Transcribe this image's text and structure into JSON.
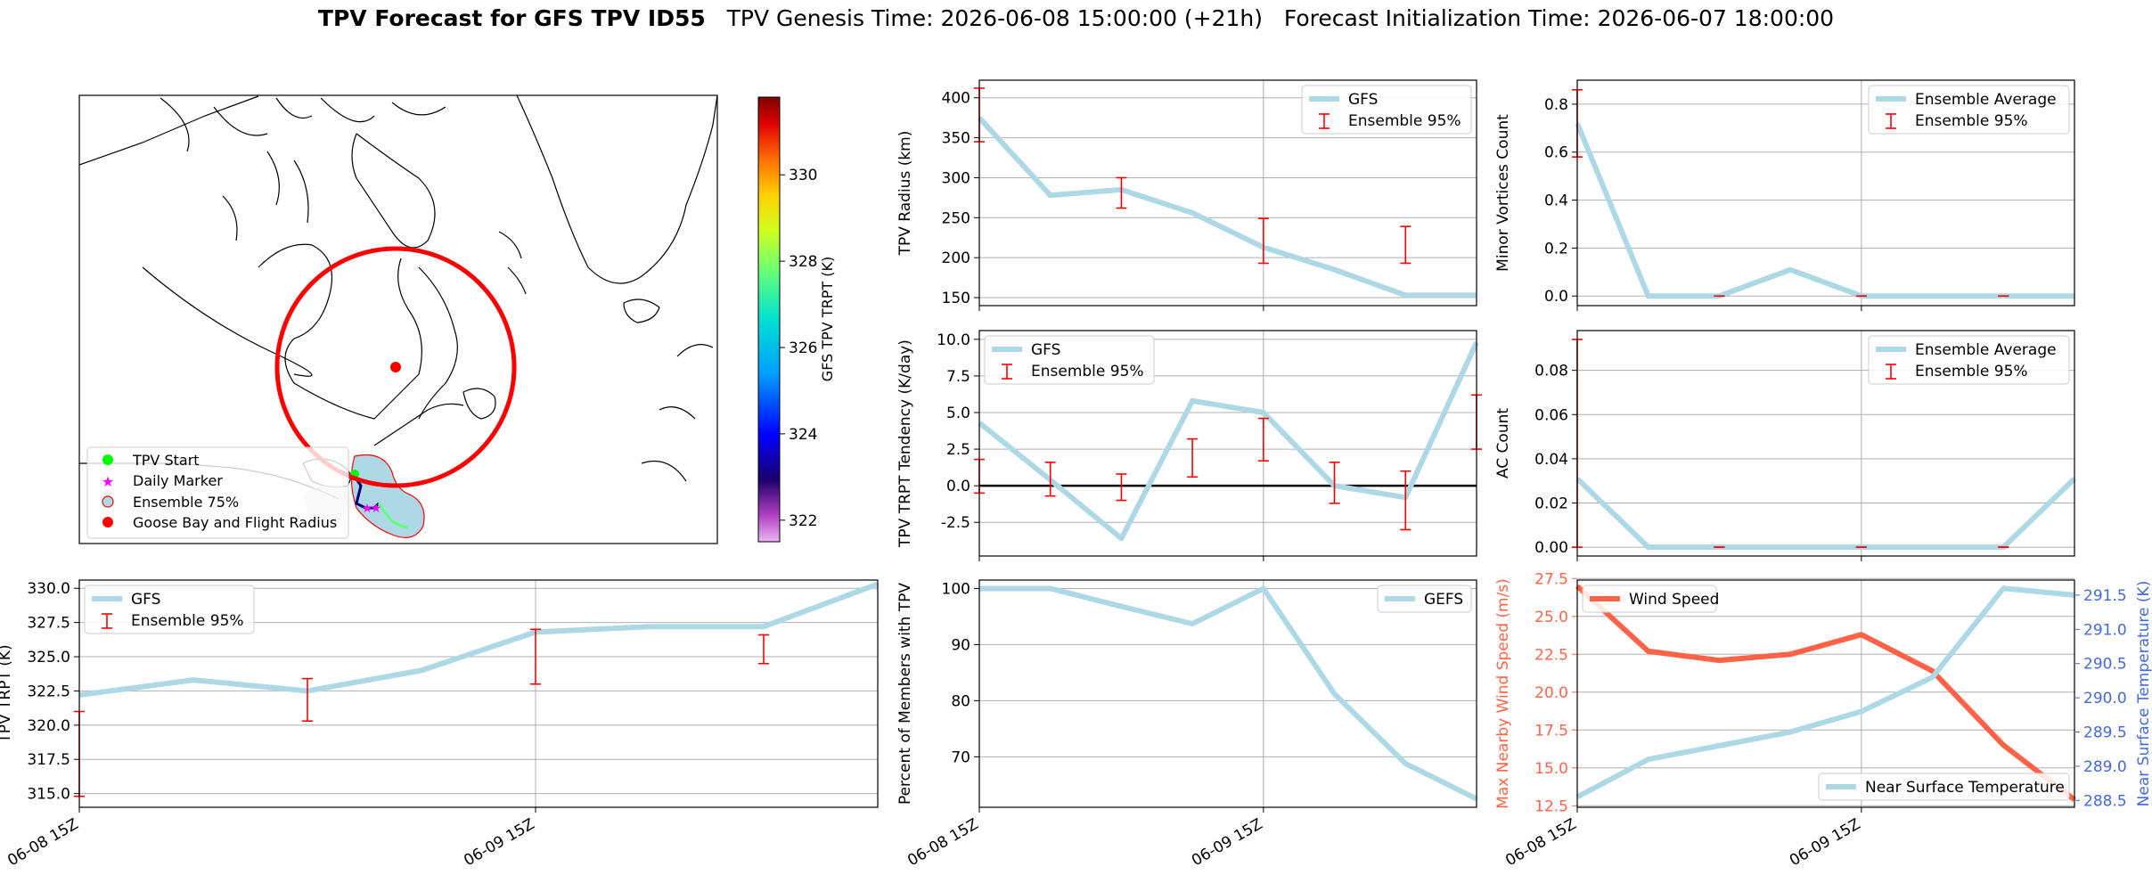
{
  "header": {
    "title_bold": "TPV Forecast for GFS TPV ID55",
    "genesis": "TPV Genesis Time: 2026-06-08 15:00:00 (+21h)",
    "init": "Forecast Initialization Time: 2026-06-07 18:00:00"
  },
  "colors": {
    "gfs_line": "#add8e6",
    "ensemble_error": "#ff0000",
    "wind_line": "#ff6347",
    "temp_axis": "#4169e1",
    "grid": "#b0b0b0"
  },
  "map": {
    "legend": [
      "TPV Start",
      "Daily Marker",
      "Ensemble 75%",
      "Goose Bay and Flight Radius"
    ],
    "colorbar": {
      "label": "GFS TPV TRPT (K)",
      "ticks": [
        322,
        324,
        326,
        328,
        330
      ],
      "range": [
        321.5,
        331.8
      ],
      "cmap": "jet-with-violet"
    }
  },
  "chart_data": [
    {
      "id": "radius",
      "type": "line",
      "x": [
        0,
        1,
        2,
        3,
        4,
        5,
        6,
        7
      ],
      "xticks": [],
      "xlim": [
        0,
        7
      ],
      "ylim": [
        140,
        422
      ],
      "yticks": [
        150,
        200,
        250,
        300,
        350,
        400
      ],
      "ylabel": "TPV Radius (km)",
      "series": [
        {
          "name": "GFS",
          "values": [
            375,
            278,
            285,
            256,
            213,
            185,
            153,
            153
          ]
        }
      ],
      "errorbars": {
        "name": "Ensemble 95%",
        "points": [
          [
            0,
            345,
            412
          ],
          [
            2,
            262,
            300
          ],
          [
            4,
            193,
            249
          ],
          [
            6,
            193,
            239
          ]
        ]
      },
      "legend": "upper right"
    },
    {
      "id": "minor",
      "type": "line",
      "x": [
        0,
        1,
        2,
        3,
        4,
        5,
        6,
        7
      ],
      "xticks": [],
      "xlim": [
        0,
        7
      ],
      "ylim": [
        -0.04,
        0.9
      ],
      "yticks": [
        0.0,
        0.2,
        0.4,
        0.6,
        0.8
      ],
      "ylabel": "Minor Vortices Count",
      "series": [
        {
          "name": "Ensemble Average",
          "values": [
            0.72,
            0,
            0,
            0.11,
            0,
            0,
            0,
            0
          ]
        }
      ],
      "errorbars": {
        "name": "Ensemble 95%",
        "points": [
          [
            0,
            0.58,
            0.86
          ],
          [
            2,
            0,
            0
          ],
          [
            4,
            0,
            0
          ],
          [
            6,
            0,
            0
          ]
        ]
      },
      "legend": "upper right"
    },
    {
      "id": "tendency",
      "type": "line",
      "x": [
        0,
        1,
        2,
        3,
        4,
        5,
        6,
        7
      ],
      "xticks": [],
      "xlim": [
        0,
        7
      ],
      "ylim": [
        -4.8,
        10.6
      ],
      "yticks": [
        -2.5,
        0.0,
        2.5,
        5.0,
        7.5,
        10.0
      ],
      "ylabel": "TPV TRPT Tendency (K/day)",
      "zero_line": true,
      "series": [
        {
          "name": "GFS",
          "values": [
            4.3,
            0.4,
            -3.6,
            5.8,
            5.0,
            0.0,
            -0.8,
            9.8
          ]
        }
      ],
      "errorbars": {
        "name": "Ensemble 95%",
        "points": [
          [
            0,
            -0.5,
            1.8
          ],
          [
            1,
            -0.7,
            1.6
          ],
          [
            2,
            -1.0,
            0.8
          ],
          [
            3,
            0.6,
            3.2
          ],
          [
            4,
            1.7,
            4.6
          ],
          [
            5,
            -1.2,
            1.6
          ],
          [
            6,
            -3.0,
            1.0
          ],
          [
            7,
            2.5,
            6.2
          ]
        ]
      },
      "legend": "upper left"
    },
    {
      "id": "ac",
      "type": "line",
      "x": [
        0,
        1,
        2,
        3,
        4,
        5,
        6,
        7
      ],
      "xticks": [],
      "xlim": [
        0,
        7
      ],
      "ylim": [
        -0.004,
        0.098
      ],
      "yticks": [
        0.0,
        0.02,
        0.04,
        0.06,
        0.08
      ],
      "ylabel": "AC Count",
      "series": [
        {
          "name": "Ensemble Average",
          "values": [
            0.031,
            0,
            0,
            0,
            0,
            0,
            0,
            0.031
          ]
        }
      ],
      "errorbars": {
        "name": "Ensemble 95%",
        "points": [
          [
            0,
            0,
            0.094
          ],
          [
            2,
            0,
            0
          ],
          [
            4,
            0,
            0
          ],
          [
            6,
            0,
            0
          ]
        ]
      },
      "legend": "upper right"
    },
    {
      "id": "trpt",
      "type": "line",
      "x": [
        0,
        1,
        2,
        3,
        4,
        5,
        6,
        7
      ],
      "xticks": [
        {
          "x": 0,
          "label": "06-08 15Z"
        },
        {
          "x": 4,
          "label": "06-09 15Z"
        }
      ],
      "xlim": [
        0,
        7
      ],
      "ylim": [
        314,
        330.6
      ],
      "yticks": [
        315.0,
        317.5,
        320.0,
        322.5,
        325.0,
        327.5,
        330.0
      ],
      "ylabel": "TPV TRPT (K)",
      "series": [
        {
          "name": "GFS",
          "values": [
            322.2,
            323.3,
            322.5,
            324.0,
            326.8,
            327.2,
            327.2,
            330.3
          ]
        }
      ],
      "errorbars": {
        "name": "Ensemble 95%",
        "points": [
          [
            0,
            314.8,
            321.0
          ],
          [
            2,
            320.3,
            323.4
          ],
          [
            4,
            323.0,
            327.0
          ],
          [
            6,
            324.5,
            326.6
          ]
        ]
      },
      "legend": "upper left"
    },
    {
      "id": "members",
      "type": "line",
      "x": [
        0,
        1,
        2,
        3,
        4,
        5,
        6,
        7
      ],
      "xticks": [
        {
          "x": 0,
          "label": "06-08 15Z"
        },
        {
          "x": 4,
          "label": "06-09 15Z"
        }
      ],
      "xlim": [
        0,
        7
      ],
      "ylim": [
        61,
        101.5
      ],
      "yticks": [
        70,
        80,
        90,
        100
      ],
      "ylabel": "Percent of Members with TPV",
      "series": [
        {
          "name": "GEFS",
          "values": [
            100,
            100,
            96.8,
            93.7,
            100,
            81.2,
            68.8,
            62.5
          ]
        }
      ],
      "legend": "upper right"
    },
    {
      "id": "wind_temp",
      "type": "line",
      "x": [
        0,
        1,
        2,
        3,
        4,
        5,
        6,
        7
      ],
      "xticks": [
        {
          "x": 0,
          "label": "06-08 15Z"
        },
        {
          "x": 4,
          "label": "06-09 15Z"
        }
      ],
      "xlim": [
        0,
        7
      ],
      "ylim": [
        12.4,
        27.4
      ],
      "yticks": [
        12.5,
        15.0,
        17.5,
        20.0,
        22.5,
        25.0,
        27.5
      ],
      "ylabel": "Max Nearby Wind Speed (m/s)",
      "ylim_right": [
        288.4,
        291.72
      ],
      "yticks_right": [
        288.5,
        289.0,
        289.5,
        290.0,
        290.5,
        291.0,
        291.5
      ],
      "ylabel_right": "Near Surface Temperature (K)",
      "series": [
        {
          "name": "Wind Speed",
          "axis": "left",
          "values": [
            27.0,
            22.7,
            22.1,
            22.5,
            23.8,
            21.4,
            16.5,
            12.9
          ]
        },
        {
          "name": "Near Surface Temperature",
          "axis": "right",
          "values": [
            288.55,
            289.1,
            289.3,
            289.5,
            289.8,
            290.3,
            291.6,
            291.5
          ]
        }
      ]
    }
  ]
}
